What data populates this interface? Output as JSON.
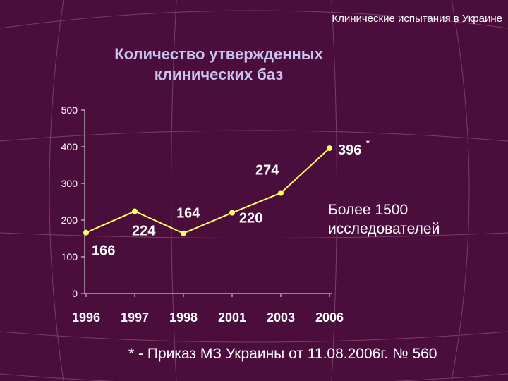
{
  "header": {
    "text": "Клинические испытания в Украине"
  },
  "title": {
    "line1": "Количество утвержденных",
    "line2": "клинических баз"
  },
  "note": {
    "line1": "Более 1500",
    "line2": "исследователей"
  },
  "footnote": {
    "text": "* - Приказ МЗ Украины от 11.08.2006г. № 560"
  },
  "colors": {
    "background": "#4b0e3c",
    "series": "#ffff66",
    "title": "#c9c4ec",
    "text": "#ffffff"
  },
  "chart_data": {
    "type": "line",
    "categories": [
      "1996",
      "1997",
      "1998",
      "2001",
      "2003",
      "2006"
    ],
    "values": [
      166,
      224,
      164,
      220,
      274,
      396
    ],
    "data_labels": [
      "166",
      "224",
      "164",
      "220",
      "274",
      "396"
    ],
    "label_marks": [
      "",
      "",
      "",
      "",
      "",
      "*"
    ],
    "yticks": [
      "0",
      "100",
      "200",
      "300",
      "400",
      "500"
    ],
    "ylim": [
      0,
      500
    ],
    "grid": false,
    "legend": "none"
  }
}
